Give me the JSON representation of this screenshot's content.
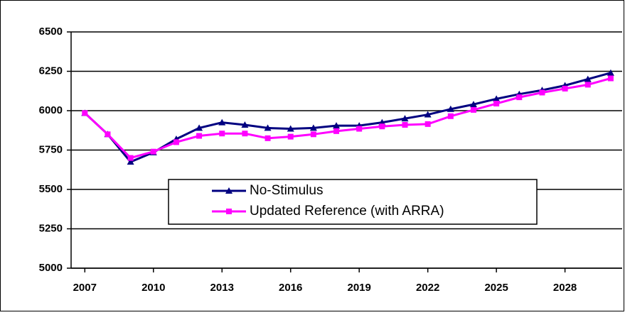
{
  "chart_data": {
    "type": "line",
    "x": [
      2007,
      2008,
      2009,
      2010,
      2011,
      2012,
      2013,
      2014,
      2015,
      2016,
      2017,
      2018,
      2019,
      2020,
      2021,
      2022,
      2023,
      2024,
      2025,
      2026,
      2027,
      2028,
      2029,
      2030
    ],
    "series": [
      {
        "name": "No-Stimulus",
        "color": "#000080",
        "marker": "triangle",
        "values": [
          5985,
          5850,
          5675,
          5735,
          5820,
          5890,
          5925,
          5910,
          5890,
          5885,
          5890,
          5905,
          5905,
          5925,
          5950,
          5975,
          6010,
          6040,
          6075,
          6105,
          6130,
          6160,
          6200,
          6240
        ]
      },
      {
        "name": "Updated Reference (with ARRA)",
        "color": "#ff00ff",
        "marker": "square",
        "values": [
          5985,
          5850,
          5700,
          5740,
          5800,
          5840,
          5855,
          5855,
          5825,
          5835,
          5850,
          5870,
          5885,
          5900,
          5910,
          5915,
          5965,
          6005,
          6045,
          6085,
          6115,
          6140,
          6165,
          6205
        ]
      }
    ],
    "xlim": [
      2006.4,
      2030.5
    ],
    "xticks": [
      2007,
      2010,
      2013,
      2016,
      2019,
      2022,
      2025,
      2028
    ],
    "ylim": [
      5000,
      6500
    ],
    "yticks": [
      5000,
      5250,
      5500,
      5750,
      6000,
      6250,
      6500
    ],
    "grid": true
  }
}
